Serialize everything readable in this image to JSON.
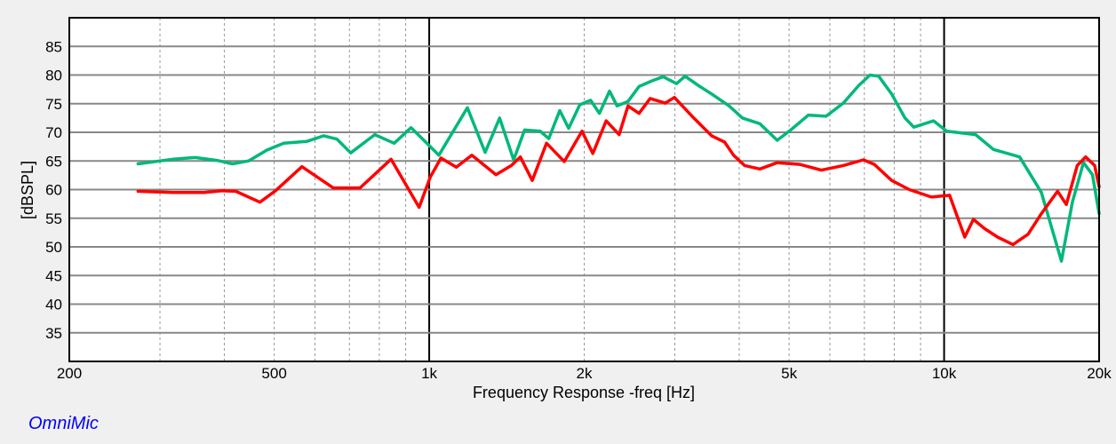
{
  "chart_data": {
    "type": "line",
    "title": "",
    "xlabel": "Frequency Response -freq [Hz]",
    "ylabel": "[dBSPL]",
    "xscale": "log",
    "xlim": [
      200,
      20000
    ],
    "ylim": [
      30,
      90
    ],
    "grid": true,
    "x_ticks": [
      {
        "value": 200,
        "label": "200"
      },
      {
        "value": 500,
        "label": "500"
      },
      {
        "value": 1000,
        "label": "1k"
      },
      {
        "value": 2000,
        "label": "2k"
      },
      {
        "value": 5000,
        "label": "5k"
      },
      {
        "value": 10000,
        "label": "10k"
      },
      {
        "value": 20000,
        "label": "20k"
      }
    ],
    "y_ticks": [
      35,
      40,
      45,
      50,
      55,
      60,
      65,
      70,
      75,
      80,
      85
    ],
    "series": [
      {
        "name": "green",
        "color": "#00b87a",
        "x": [
          272,
          318,
          351,
          387,
          415,
          446,
          484,
          522,
          578,
          624,
          662,
          704,
          784,
          855,
          922,
          1005,
          1044,
          1186,
          1284,
          1370,
          1459,
          1532,
          1642,
          1707,
          1793,
          1866,
          1961,
          2058,
          2141,
          2240,
          2317,
          2433,
          2556,
          2713,
          2847,
          3022,
          3140,
          3328,
          3536,
          3823,
          4058,
          4387,
          4741,
          5036,
          5450,
          5898,
          6372,
          6829,
          7178,
          7462,
          7910,
          8395,
          8730,
          9539,
          10117,
          11513,
          12471,
          14016,
          15447,
          16896,
          17746,
          18647,
          19412,
          20000
        ],
        "y": [
          64.5,
          65.3,
          65.6,
          65.1,
          64.5,
          65,
          66.9,
          68.1,
          68.4,
          69.4,
          68.8,
          66.4,
          69.6,
          68.1,
          70.8,
          67.5,
          66,
          74.3,
          66.5,
          72.5,
          65.2,
          70.4,
          70.2,
          68.9,
          73.8,
          70.7,
          74.8,
          75.6,
          73.3,
          77.2,
          74.6,
          75.4,
          78,
          79,
          79.7,
          78.5,
          79.8,
          78.2,
          76.7,
          74.6,
          72.5,
          71.5,
          68.6,
          70.4,
          73,
          72.8,
          75.1,
          78.2,
          80,
          79.8,
          76.7,
          72.5,
          70.9,
          72,
          70.2,
          69.6,
          67,
          65.7,
          59.5,
          47.5,
          57.8,
          64.7,
          62.6,
          55.8
        ]
      },
      {
        "name": "red",
        "color": "#ff0000",
        "x": [
          272,
          318,
          366,
          396,
          421,
          469,
          503,
          566,
          651,
          734,
          843,
          956,
          1005,
          1054,
          1129,
          1210,
          1348,
          1444,
          1503,
          1585,
          1690,
          1830,
          1980,
          2079,
          2206,
          2338,
          2433,
          2556,
          2686,
          2874,
          2993,
          3265,
          3536,
          3747,
          3900,
          4097,
          4387,
          4741,
          5240,
          5776,
          6372,
          6972,
          7319,
          7910,
          8560,
          9447,
          10246,
          10966,
          11399,
          11979,
          12701,
          13608,
          14556,
          15447,
          16610,
          17274,
          18140,
          18831,
          19608,
          20000
        ],
        "y": [
          59.7,
          59.5,
          59.5,
          59.8,
          59.7,
          57.8,
          59.8,
          64,
          60.3,
          60.3,
          65.3,
          56.9,
          62.2,
          65.5,
          63.9,
          66,
          62.6,
          64.2,
          65.7,
          61.6,
          68.1,
          64.9,
          70.2,
          66.3,
          72,
          69.6,
          74.6,
          73.3,
          75.9,
          75.1,
          76.1,
          72.5,
          69.4,
          68.3,
          66,
          64.2,
          63.6,
          64.7,
          64.4,
          63.4,
          64.2,
          65.2,
          64.4,
          61.6,
          60,
          58.7,
          59,
          51.7,
          54.8,
          53.2,
          51.7,
          50.4,
          52.2,
          55.8,
          59.7,
          57.4,
          64.2,
          65.7,
          64.2,
          60.5
        ]
      }
    ]
  },
  "brand": "OmniMic"
}
